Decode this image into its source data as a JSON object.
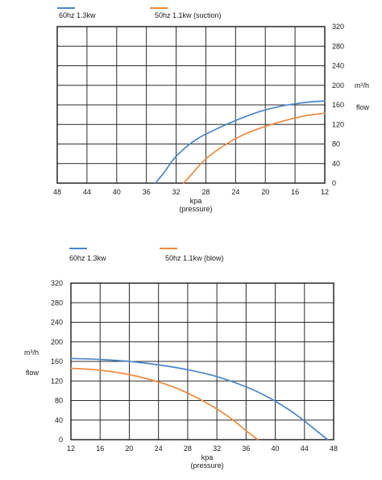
{
  "chart_data": [
    {
      "type": "line",
      "title": "",
      "xlabel": "kpa",
      "xlabel2": "(pressure)",
      "ylabel_unit": "m³/h",
      "ylabel": "flow",
      "x_reversed": true,
      "xlim": [
        12,
        48
      ],
      "ylim": [
        0,
        320
      ],
      "xticks": [
        48,
        44,
        40,
        36,
        32,
        28,
        24,
        20,
        16,
        12
      ],
      "yticks": [
        0,
        40,
        80,
        120,
        160,
        200,
        240,
        280,
        320
      ],
      "y_axis_side": "right",
      "grid": true,
      "legend": [
        {
          "label": "60hz 1.3kw",
          "color": "#4a86c8"
        },
        {
          "label": "50hz  1.1kw  (suction)",
          "color": "#ee8a3e"
        }
      ],
      "series": [
        {
          "name": "60hz 1.3kw",
          "color": "#4a86c8",
          "x": [
            34.8,
            33.6,
            32.4,
            30.8,
            29.0,
            26.4,
            24.0,
            20.8,
            18.0,
            15.6,
            14.0,
            12.0
          ],
          "y": [
            0,
            22,
            48,
            72,
            92,
            112,
            128,
            146,
            157,
            163,
            166,
            168
          ]
        },
        {
          "name": "50hz  1.1kw  (suction)",
          "color": "#ee8a3e",
          "x": [
            31.0,
            29.8,
            28.4,
            26.8,
            24.8,
            22.8,
            20.4,
            17.6,
            15.2,
            13.6,
            12.0
          ],
          "y": [
            0,
            20,
            44,
            64,
            84,
            100,
            114,
            127,
            136,
            140,
            143
          ]
        }
      ]
    },
    {
      "type": "line",
      "title": "",
      "xlabel": "kpa",
      "xlabel2": "(pressure)",
      "ylabel_unit": "m³/h",
      "ylabel": "flow",
      "x_reversed": false,
      "xlim": [
        12,
        48
      ],
      "ylim": [
        0,
        320
      ],
      "xticks": [
        12,
        16,
        20,
        24,
        28,
        32,
        36,
        40,
        44,
        48
      ],
      "yticks": [
        0,
        40,
        80,
        120,
        160,
        200,
        240,
        280,
        320
      ],
      "y_axis_side": "left",
      "grid": true,
      "legend": [
        {
          "label": "60hz 1.3kw",
          "color": "#4a86c8"
        },
        {
          "label": "50hz  1.1kw  (blow)",
          "color": "#ee8a3e"
        }
      ],
      "series": [
        {
          "name": "60hz 1.3kw",
          "color": "#4a86c8",
          "x": [
            12.0,
            16.0,
            20.0,
            24.0,
            28.0,
            32.0,
            36.0,
            39.0,
            42.0,
            44.0,
            45.5,
            46.5,
            47.2
          ],
          "y": [
            166,
            164,
            160,
            153,
            143,
            129,
            108,
            87,
            60,
            38,
            20,
            8,
            0
          ]
        },
        {
          "name": "50hz  1.1kw  (blow)",
          "color": "#ee8a3e",
          "x": [
            12.0,
            16.0,
            20.0,
            24.0,
            27.0,
            30.0,
            32.5,
            34.5,
            36.0,
            37.0,
            37.6
          ],
          "y": [
            146,
            142,
            133,
            118,
            102,
            80,
            58,
            37,
            18,
            7,
            0
          ]
        }
      ]
    }
  ]
}
